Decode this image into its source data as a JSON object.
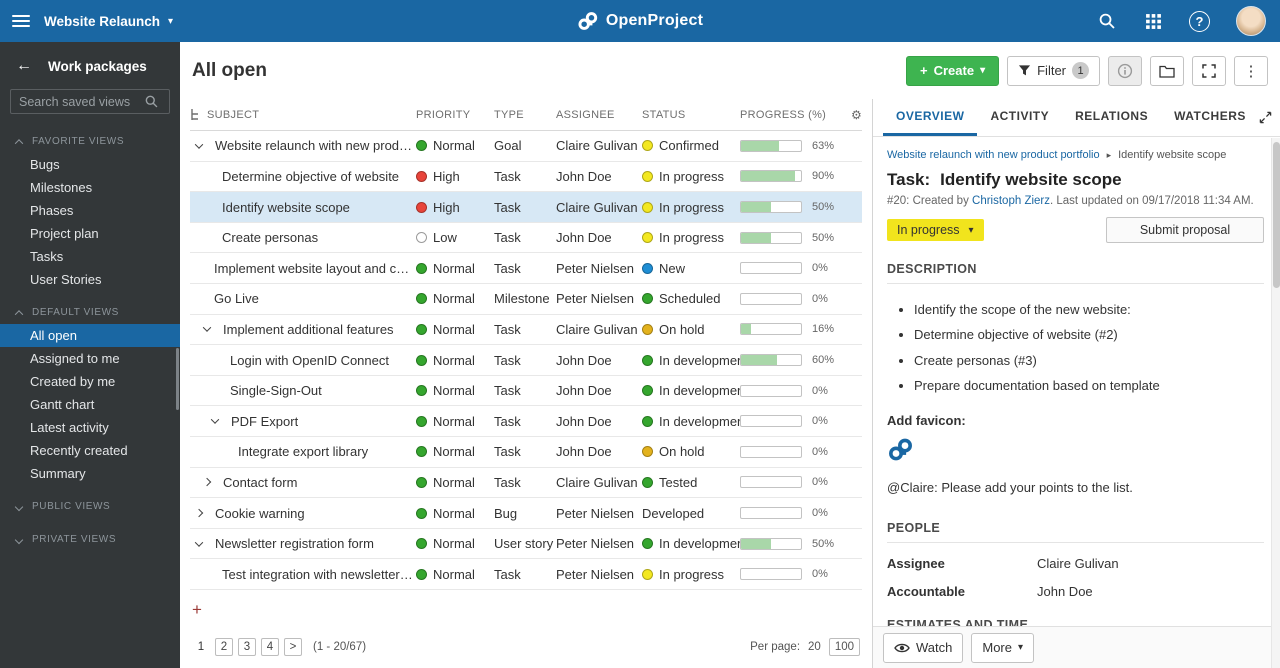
{
  "icons": {
    "caret_down": "▾",
    "back_arrow": "←",
    "breadcrumb_separator": "▸",
    "close": "×",
    "kebab": "⋮",
    "gear": "⚙",
    "help": "?",
    "plus": "+",
    "add_row": "+"
  },
  "colors": {
    "topbar": "#1a67a3",
    "accent_blue": "#1a67a3",
    "create_green": "#3eb450",
    "status_yellow": "#f3e821",
    "selected_row": "#d7e8f5",
    "progress_fill": "#a9d7a9"
  },
  "topbar": {
    "project_name": "Website Relaunch",
    "app_name": "OpenProject"
  },
  "sidebar": {
    "title": "Work packages",
    "search_placeholder": "Search saved views",
    "sections": [
      {
        "title": "FAVORITE VIEWS",
        "expanded": true,
        "selected": null,
        "items": [
          "Bugs",
          "Milestones",
          "Phases",
          "Project plan",
          "Tasks",
          "User Stories"
        ]
      },
      {
        "title": "DEFAULT VIEWS",
        "expanded": true,
        "selected": "All open",
        "items": [
          "All open",
          "Assigned to me",
          "Created by me",
          "Gantt chart",
          "Latest activity",
          "Recently created",
          "Summary"
        ]
      },
      {
        "title": "PUBLIC VIEWS",
        "expanded": false,
        "selected": null,
        "items": []
      },
      {
        "title": "PRIVATE VIEWS",
        "expanded": false,
        "selected": null,
        "items": []
      }
    ]
  },
  "toolbar": {
    "page_title": "All open",
    "create_label": "Create",
    "filter_label": "Filter",
    "filter_count": "1"
  },
  "table": {
    "columns": [
      "SUBJECT",
      "PRIORITY",
      "TYPE",
      "ASSIGNEE",
      "STATUS",
      "PROGRESS (%)"
    ],
    "rows": [
      {
        "subject": "Website relaunch with new product po...",
        "level": 0,
        "chevron": "down",
        "priority": "Normal",
        "priority_color": "#35a62e",
        "type": "Goal",
        "assignee": "Claire Gulivan",
        "status": "Confirmed",
        "status_color": "#f3e821",
        "progress": 63,
        "selected": false
      },
      {
        "subject": "Determine objective of website",
        "level": 1,
        "chevron": null,
        "priority": "High",
        "priority_color": "#e8443a",
        "type": "Task",
        "assignee": "John Doe",
        "status": "In progress",
        "status_color": "#f3e821",
        "progress": 90,
        "selected": false
      },
      {
        "subject": "Identify website scope",
        "level": 1,
        "chevron": null,
        "priority": "High",
        "priority_color": "#e8443a",
        "type": "Task",
        "assignee": "Claire Gulivan",
        "status": "In progress",
        "status_color": "#f3e821",
        "progress": 50,
        "selected": true
      },
      {
        "subject": "Create personas",
        "level": 1,
        "chevron": null,
        "priority": "Low",
        "priority_color": "outline",
        "type": "Task",
        "assignee": "John Doe",
        "status": "In progress",
        "status_color": "#f3e821",
        "progress": 50,
        "selected": false
      },
      {
        "subject": "Implement website layout and content",
        "level": 0,
        "chevron": null,
        "priority": "Normal",
        "priority_color": "#35a62e",
        "type": "Task",
        "assignee": "Peter Nielsen",
        "status": "New",
        "status_color": "#1f8ed4",
        "progress": 0,
        "selected": false
      },
      {
        "subject": "Go Live",
        "level": 0,
        "chevron": null,
        "priority": "Normal",
        "priority_color": "#35a62e",
        "type": "Milestone",
        "assignee": "Peter Nielsen",
        "status": "Scheduled",
        "status_color": "#35a62e",
        "progress": 0,
        "selected": false
      },
      {
        "subject": "Implement additional features",
        "level": 1,
        "chevron": "down",
        "priority": "Normal",
        "priority_color": "#35a62e",
        "type": "Task",
        "assignee": "Claire Gulivan",
        "status": "On hold",
        "status_color": "#e3b21d",
        "progress": 16,
        "selected": false
      },
      {
        "subject": "Login with OpenID Connect",
        "level": 2,
        "chevron": null,
        "priority": "Normal",
        "priority_color": "#35a62e",
        "type": "Task",
        "assignee": "John Doe",
        "status": "In development",
        "status_color": "#35a62e",
        "progress": 60,
        "selected": false
      },
      {
        "subject": "Single-Sign-Out",
        "level": 2,
        "chevron": null,
        "priority": "Normal",
        "priority_color": "#35a62e",
        "type": "Task",
        "assignee": "John Doe",
        "status": "In development",
        "status_color": "#35a62e",
        "progress": 0,
        "selected": false
      },
      {
        "subject": "PDF Export",
        "level": 2,
        "chevron": "down",
        "priority": "Normal",
        "priority_color": "#35a62e",
        "type": "Task",
        "assignee": "John Doe",
        "status": "In development",
        "status_color": "#35a62e",
        "progress": 0,
        "selected": false
      },
      {
        "subject": "Integrate export library",
        "level": 3,
        "chevron": null,
        "priority": "Normal",
        "priority_color": "#35a62e",
        "type": "Task",
        "assignee": "John Doe",
        "status": "On hold",
        "status_color": "#e3b21d",
        "progress": 0,
        "selected": false
      },
      {
        "subject": "Contact form",
        "level": 1,
        "chevron": "right",
        "priority": "Normal",
        "priority_color": "#35a62e",
        "type": "Task",
        "assignee": "Claire Gulivan",
        "status": "Tested",
        "status_color": "#35a62e",
        "progress": 0,
        "selected": false
      },
      {
        "subject": "Cookie warning",
        "level": 0,
        "chevron": "right",
        "priority": "Normal",
        "priority_color": "#35a62e",
        "type": "Bug",
        "assignee": "Peter Nielsen",
        "status": "Developed",
        "status_color": null,
        "progress": 0,
        "selected": false
      },
      {
        "subject": "Newsletter registration form",
        "level": 0,
        "chevron": "down",
        "priority": "Normal",
        "priority_color": "#35a62e",
        "type": "User story",
        "assignee": "Peter Nielsen",
        "status": "In development",
        "status_color": "#35a62e",
        "progress": 50,
        "selected": false
      },
      {
        "subject": "Test integration with newsletter tool",
        "level": 1,
        "chevron": null,
        "priority": "Normal",
        "priority_color": "#35a62e",
        "type": "Task",
        "assignee": "Peter Nielsen",
        "status": "In progress",
        "status_color": "#f3e821",
        "progress": 0,
        "selected": false
      }
    ]
  },
  "pagination": {
    "pages": [
      {
        "label": "1",
        "current": true
      },
      {
        "label": "2",
        "current": false
      },
      {
        "label": "3",
        "current": false
      },
      {
        "label": "4",
        "current": false
      },
      {
        "label": ">",
        "current": false
      }
    ],
    "range": "(1 - 20/67)",
    "per_page_label": "Per page:",
    "per_page_options": [
      {
        "value": "20",
        "current": true
      },
      {
        "value": "100",
        "current": false
      }
    ]
  },
  "detail": {
    "tabs": [
      {
        "label": "OVERVIEW",
        "active": true
      },
      {
        "label": "ACTIVITY",
        "active": false
      },
      {
        "label": "RELATIONS",
        "active": false
      },
      {
        "label": "WATCHERS",
        "active": false
      }
    ],
    "breadcrumb": {
      "parent": "Website relaunch with new product portfolio",
      "current": "Identify website scope"
    },
    "title_prefix": "Task:",
    "title": "Identify website scope",
    "meta_prefix": "#20: Created by ",
    "meta_author": "Christoph Zierz",
    "meta_suffix": ". Last updated on 09/17/2018 11:34 AM.",
    "status_button": "In progress",
    "submit_button": "Submit proposal",
    "description": {
      "heading": "DESCRIPTION",
      "bullets": [
        "Identify the scope of the new website:",
        "Determine objective of website (#2)",
        "Create personas (#3)",
        "Prepare documentation based on template"
      ],
      "add_favicon_label": "Add favicon:",
      "note": "@Claire: Please add your points to the list."
    },
    "people": {
      "heading": "PEOPLE",
      "rows": [
        {
          "label": "Assignee",
          "value": "Claire Gulivan"
        },
        {
          "label": "Accountable",
          "value": "John Doe"
        }
      ]
    },
    "estimates_heading": "ESTIMATES AND TIME",
    "footer": {
      "watch_label": "Watch",
      "more_label": "More"
    }
  }
}
